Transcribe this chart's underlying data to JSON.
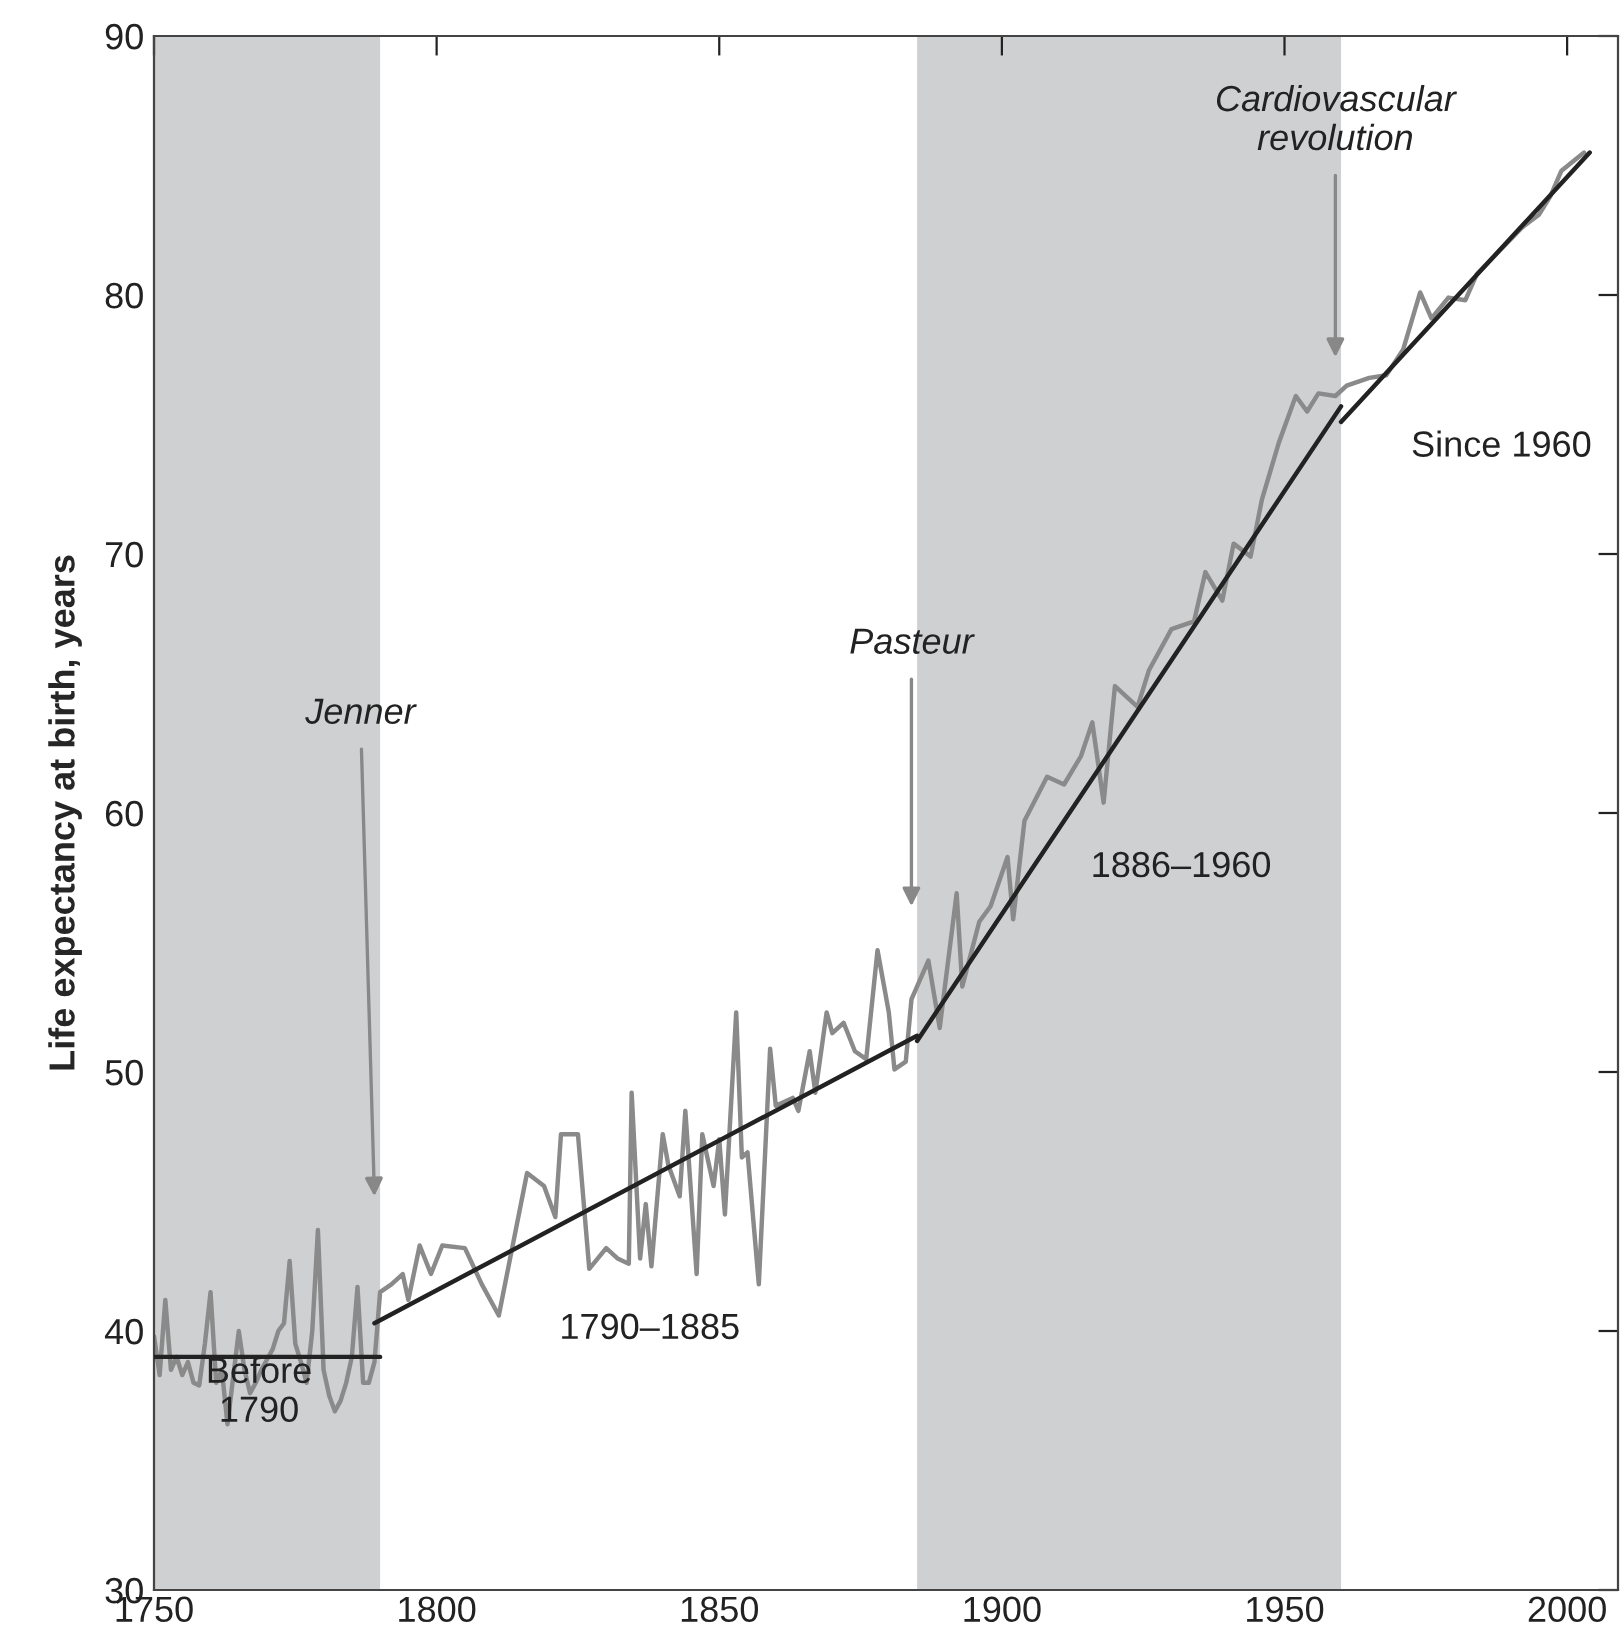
{
  "chart_data": {
    "type": "line",
    "ylabel": "Life expectancy at birth, years",
    "xlim": [
      1750,
      2009
    ],
    "xticks": [
      1750,
      1800,
      1850,
      1900,
      1950,
      2000
    ],
    "ylim": [
      30,
      90
    ],
    "yticks": [
      30,
      40,
      50,
      60,
      70,
      80,
      90
    ],
    "grid": false,
    "legend": false,
    "marker": "none",
    "line_style": "solid",
    "bands": [
      {
        "axis": "x",
        "from": 1750,
        "to": 1790,
        "color": "#cfd0d2"
      },
      {
        "axis": "x",
        "from": 1885,
        "to": 1960,
        "color": "#cfd0d2"
      }
    ],
    "annotations": [
      {
        "text": "Jenner",
        "x": 1789,
        "y": 45.2
      },
      {
        "text": "Pasteur",
        "x": 1884,
        "y": 56.4
      },
      {
        "text": "Cardiovascular\nrevolution",
        "x": 1959,
        "y": 77.6
      }
    ],
    "series": [
      {
        "color": "#8a8a8a",
        "x": [
          1750,
          1751,
          1752,
          1753,
          1754,
          1755,
          1756,
          1757,
          1758,
          1759,
          1760,
          1761,
          1762,
          1763,
          1764,
          1765,
          1766,
          1767,
          1768,
          1769,
          1770,
          1771,
          1772,
          1773,
          1774,
          1775,
          1776,
          1777,
          1778,
          1779,
          1780,
          1781,
          1782,
          1783,
          1784,
          1785,
          1786,
          1787,
          1788,
          1789,
          1790,
          1792,
          1794,
          1795,
          1797,
          1799,
          1801,
          1805,
          1808,
          1811,
          1816,
          1819,
          1821,
          1822,
          1825,
          1827,
          1830,
          1832,
          1834,
          1834.5,
          1836,
          1837,
          1838,
          1840,
          1841,
          1843,
          1844,
          1846,
          1847,
          1849,
          1850,
          1851,
          1853,
          1854,
          1855,
          1857,
          1859,
          1860,
          1863,
          1864,
          1866,
          1867,
          1869,
          1870,
          1872,
          1874,
          1876,
          1878,
          1880,
          1881,
          1883,
          1884,
          1887,
          1889,
          1892,
          1893,
          1896,
          1898,
          1901,
          1902,
          1904,
          1908,
          1911,
          1914,
          1916,
          1918,
          1920,
          1924,
          1926,
          1930,
          1934,
          1936,
          1939,
          1941,
          1944,
          1946,
          1949,
          1952,
          1954,
          1956,
          1959,
          1961,
          1965,
          1968,
          1971,
          1974,
          1976,
          1979,
          1982,
          1984,
          1988,
          1992,
          1995,
          1997,
          1999,
          2003
        ],
        "values": [
          39.8,
          38.3,
          41.2,
          38.5,
          39.0,
          38.3,
          38.8,
          38.0,
          37.9,
          39.5,
          41.5,
          38.0,
          38.5,
          36.4,
          38.2,
          40.0,
          38.5,
          37.6,
          38.0,
          38.5,
          38.9,
          39.3,
          40.0,
          40.3,
          42.7,
          39.5,
          38.8,
          38.0,
          40.0,
          43.9,
          38.5,
          37.5,
          36.9,
          37.3,
          38.0,
          39.0,
          41.7,
          38.0,
          38.0,
          38.8,
          41.5,
          41.8,
          42.2,
          41.2,
          43.3,
          42.2,
          43.3,
          43.2,
          41.8,
          40.6,
          46.1,
          45.6,
          44.4,
          47.6,
          47.6,
          42.4,
          43.2,
          42.8,
          42.6,
          49.2,
          42.8,
          44.9,
          42.5,
          47.6,
          46.4,
          45.2,
          48.5,
          42.2,
          47.6,
          45.6,
          47.4,
          44.5,
          52.3,
          46.7,
          46.9,
          41.8,
          50.9,
          48.7,
          49.0,
          48.5,
          50.8,
          49.2,
          52.3,
          51.5,
          51.9,
          50.8,
          50.5,
          54.7,
          52.3,
          50.1,
          50.4,
          52.8,
          54.3,
          51.7,
          56.9,
          53.3,
          55.8,
          56.4,
          58.3,
          55.9,
          59.7,
          61.4,
          61.1,
          62.2,
          63.5,
          60.4,
          64.9,
          64.1,
          65.5,
          67.1,
          67.4,
          69.3,
          68.2,
          70.4,
          69.9,
          72.1,
          74.3,
          76.1,
          75.5,
          76.2,
          76.1,
          76.5,
          76.8,
          76.9,
          77.9,
          80.1,
          79.1,
          79.9,
          79.8,
          80.8,
          81.7,
          82.6,
          83.1,
          83.8,
          84.8,
          85.5
        ]
      },
      {
        "name": "Before\n1790",
        "color": "#222222",
        "x": [
          1750,
          1790
        ],
        "values": [
          39.0,
          39.0
        ]
      },
      {
        "name": "1790–1885",
        "color": "#222222",
        "x": [
          1789,
          1885
        ],
        "values": [
          40.3,
          51.4
        ]
      },
      {
        "name": "1886–1960",
        "color": "#222222",
        "x": [
          1885,
          1960
        ],
        "values": [
          51.2,
          75.7
        ]
      },
      {
        "name": "Since 1960",
        "color": "#222222",
        "x": [
          1960,
          2004
        ],
        "values": [
          75.1,
          85.5
        ]
      }
    ]
  }
}
